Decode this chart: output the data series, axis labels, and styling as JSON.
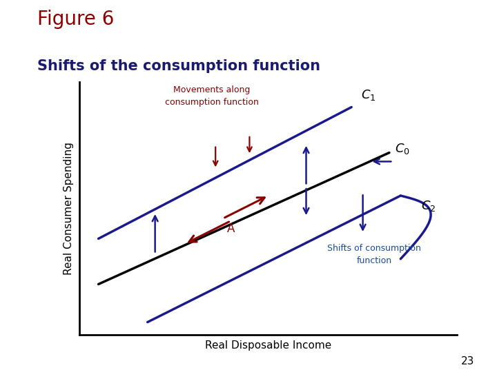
{
  "title": "Figure 6",
  "subtitle": "Shifts of the consumption function",
  "xlabel": "Real Disposable Income",
  "ylabel": "Real Consumer Spending",
  "page_number": "23",
  "title_color": "#8B0000",
  "subtitle_color": "#1a1a6e",
  "bg_color": "#FFFFFF",
  "teal_color": "#2a8a8a",
  "blue_line_color": "#1a1a8c",
  "dark_red": "#8B0000",
  "black": "#000000",
  "shifts_label_color": "#1a4a9a"
}
